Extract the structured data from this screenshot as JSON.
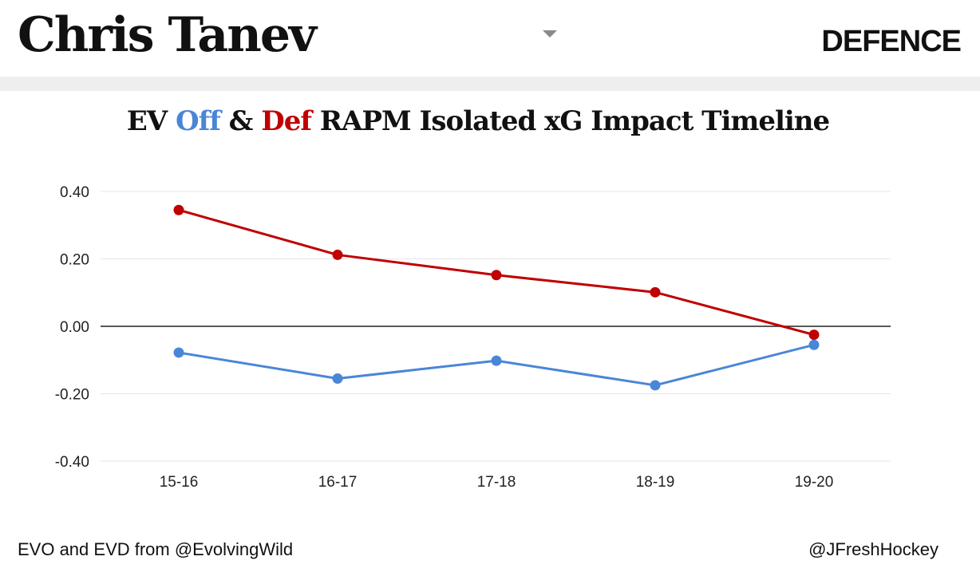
{
  "header": {
    "player_name": "Chris Tanev",
    "position": "DEFENCE",
    "dropdown_icon": "chevron-down-icon"
  },
  "title": {
    "ev": "EV ",
    "off": "Off",
    "amp": " & ",
    "def": "Def",
    "rest": " RAPM Isolated xG Impact Timeline"
  },
  "colors": {
    "off": "#4a86d6",
    "def": "#c00000",
    "gridline": "#e6e6e6",
    "zero_line": "#222222"
  },
  "chart_data": {
    "type": "line",
    "title": "EV Off & Def RAPM Isolated xG Impact Timeline",
    "categories": [
      "15-16",
      "16-17",
      "17-18",
      "18-19",
      "19-20"
    ],
    "y_ticks": [
      "0.40",
      "0.20",
      "0.00",
      "-0.20",
      "-0.40"
    ],
    "ylim": [
      -0.4,
      0.4
    ],
    "grid": true,
    "xlabel": "",
    "ylabel": "",
    "series": [
      {
        "name": "Def",
        "color": "#c00000",
        "values": [
          0.345,
          0.212,
          0.152,
          0.101,
          -0.025
        ]
      },
      {
        "name": "Off",
        "color": "#4a86d6",
        "values": [
          -0.078,
          -0.155,
          -0.102,
          -0.175,
          -0.055
        ]
      }
    ]
  },
  "footer": {
    "source": "EVO and EVD from @EvolvingWild",
    "credit": "@JFreshHockey"
  }
}
